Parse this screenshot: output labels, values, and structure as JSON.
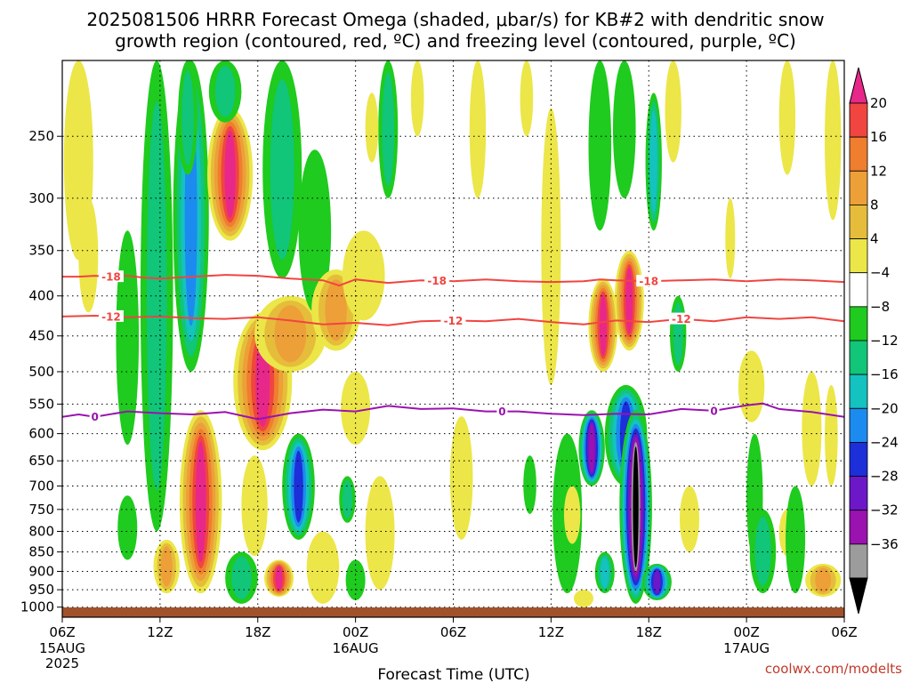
{
  "chart_data": {
    "type": "heatmap",
    "title_line1": "2025081506 HRRR Forecast Omega (shaded, μbar/s) for KB#2 with dendritic snow",
    "title_line2": "growth region (contoured, red, ºC) and freezing level (contoured, purple, ºC)",
    "xlabel": "Forecast Time (UTC)",
    "ylabel": "",
    "credit": "coolwx.com/modelts",
    "x_ticks": [
      {
        "h": 0,
        "label": "06Z",
        "sub1": "15AUG",
        "sub2": "2025"
      },
      {
        "h": 6,
        "label": "12Z",
        "sub1": "",
        "sub2": ""
      },
      {
        "h": 12,
        "label": "18Z",
        "sub1": "",
        "sub2": ""
      },
      {
        "h": 18,
        "label": "00Z",
        "sub1": "16AUG",
        "sub2": ""
      },
      {
        "h": 24,
        "label": "06Z",
        "sub1": "",
        "sub2": ""
      },
      {
        "h": 30,
        "label": "12Z",
        "sub1": "",
        "sub2": ""
      },
      {
        "h": 36,
        "label": "18Z",
        "sub1": "",
        "sub2": ""
      },
      {
        "h": 42,
        "label": "00Z",
        "sub1": "17AUG",
        "sub2": ""
      },
      {
        "h": 48,
        "label": "06Z",
        "sub1": "",
        "sub2": ""
      }
    ],
    "xlim": [
      0,
      48
    ],
    "y_ticks": [
      250,
      300,
      350,
      400,
      450,
      500,
      550,
      600,
      650,
      700,
      750,
      800,
      850,
      900,
      950,
      1000
    ],
    "ylim": [
      200,
      1030
    ],
    "y_scale": "log-pressure",
    "grid": "dotted",
    "colorbar": {
      "labels": [
        "20",
        "16",
        "12",
        "8",
        "4",
        "−4",
        "−8",
        "−12",
        "−16",
        "−20",
        "−24",
        "−28",
        "−32",
        "−36"
      ],
      "colors": [
        "#e8278a",
        "#f04540",
        "#ef7e2f",
        "#ed9f38",
        "#e5bd3a",
        "#ece648",
        "#ffffff",
        "#1ecb1e",
        "#11c579",
        "#14c2c0",
        "#1c8bf0",
        "#1c2fd8",
        "#6c17c8",
        "#9a12b0",
        "#9c9c9c",
        "#000000"
      ]
    },
    "contours": [
      {
        "name": "dgz-minus-18",
        "label": "-18",
        "color": "#f04540",
        "points": [
          [
            0,
            378
          ],
          [
            1,
            378
          ],
          [
            2,
            377
          ],
          [
            3,
            378
          ],
          [
            4,
            377
          ],
          [
            5,
            379
          ],
          [
            6,
            380
          ],
          [
            8,
            378
          ],
          [
            10,
            376
          ],
          [
            12,
            377
          ],
          [
            14,
            380
          ],
          [
            16,
            382
          ],
          [
            17,
            388
          ],
          [
            18,
            381
          ],
          [
            20,
            385
          ],
          [
            22,
            382
          ],
          [
            24,
            383
          ],
          [
            26,
            381
          ],
          [
            28,
            383
          ],
          [
            30,
            384
          ],
          [
            32,
            383
          ],
          [
            33,
            381
          ],
          [
            34,
            382
          ],
          [
            36,
            383
          ],
          [
            38,
            382
          ],
          [
            40,
            381
          ],
          [
            42,
            383
          ],
          [
            44,
            381
          ],
          [
            46,
            382
          ],
          [
            48,
            384
          ]
        ],
        "labels_at": [
          3,
          23,
          36
        ]
      },
      {
        "name": "dgz-minus-12",
        "label": "-12",
        "color": "#f04540",
        "points": [
          [
            0,
            425
          ],
          [
            2,
            424
          ],
          [
            4,
            426
          ],
          [
            6,
            425
          ],
          [
            8,
            427
          ],
          [
            10,
            428
          ],
          [
            12,
            426
          ],
          [
            14,
            430
          ],
          [
            16,
            435
          ],
          [
            18,
            433
          ],
          [
            20,
            436
          ],
          [
            22,
            431
          ],
          [
            24,
            430
          ],
          [
            26,
            431
          ],
          [
            28,
            428
          ],
          [
            30,
            432
          ],
          [
            32,
            435
          ],
          [
            34,
            430
          ],
          [
            36,
            432
          ],
          [
            38,
            428
          ],
          [
            40,
            431
          ],
          [
            42,
            426
          ],
          [
            44,
            428
          ],
          [
            46,
            426
          ],
          [
            48,
            431
          ]
        ],
        "labels_at": [
          3,
          24,
          38
        ]
      },
      {
        "name": "freezing-level",
        "label": "0",
        "color": "#9a12b0",
        "points": [
          [
            0,
            571
          ],
          [
            1,
            567
          ],
          [
            2,
            571
          ],
          [
            4,
            562
          ],
          [
            6,
            565
          ],
          [
            8,
            567
          ],
          [
            10,
            563
          ],
          [
            12,
            575
          ],
          [
            14,
            565
          ],
          [
            16,
            559
          ],
          [
            18,
            562
          ],
          [
            20,
            553
          ],
          [
            22,
            558
          ],
          [
            24,
            557
          ],
          [
            26,
            562
          ],
          [
            28,
            562
          ],
          [
            30,
            566
          ],
          [
            32,
            568
          ],
          [
            34,
            566
          ],
          [
            36,
            567
          ],
          [
            38,
            558
          ],
          [
            40,
            561
          ],
          [
            42,
            552
          ],
          [
            43,
            549
          ],
          [
            44,
            558
          ],
          [
            46,
            563
          ],
          [
            48,
            571
          ]
        ],
        "labels_at": [
          2,
          27,
          40
        ]
      }
    ],
    "shaded_blobs": [
      {
        "x": 1.0,
        "p": [
          200,
          360
        ],
        "w": 0.9,
        "peak": 5
      },
      {
        "x": 1.6,
        "p": [
          300,
          420
        ],
        "w": 0.6,
        "peak": 5
      },
      {
        "x": 4.0,
        "p": [
          330,
          620
        ],
        "w": 0.7,
        "peak": -6
      },
      {
        "x": 4.0,
        "p": [
          720,
          870
        ],
        "w": 0.6,
        "peak": -6
      },
      {
        "x": 5.8,
        "p": [
          200,
          800
        ],
        "w": 1.0,
        "peak": -10
      },
      {
        "x": 6.4,
        "p": [
          820,
          960
        ],
        "w": 0.8,
        "peak": 10
      },
      {
        "x": 7.9,
        "p": [
          200,
          500
        ],
        "w": 1.1,
        "peak": -16
      },
      {
        "x": 7.7,
        "p": [
          200,
          280
        ],
        "w": 0.6,
        "peak": -10
      },
      {
        "x": 8.5,
        "p": [
          560,
          960
        ],
        "w": 1.3,
        "peak": 24
      },
      {
        "x": 10.3,
        "p": [
          230,
          340
        ],
        "w": 1.4,
        "peak": 26
      },
      {
        "x": 10.0,
        "p": [
          200,
          240
        ],
        "w": 1.0,
        "peak": -10
      },
      {
        "x": 12.3,
        "p": [
          420,
          630
        ],
        "w": 1.8,
        "peak": 24
      },
      {
        "x": 11.8,
        "p": [
          640,
          860
        ],
        "w": 0.8,
        "peak": 6
      },
      {
        "x": 14.0,
        "p": [
          400,
          500
        ],
        "w": 2.2,
        "peak": 12
      },
      {
        "x": 14.5,
        "p": [
          600,
          820
        ],
        "w": 1.0,
        "peak": -22
      },
      {
        "x": 13.3,
        "p": [
          870,
          970
        ],
        "w": 0.9,
        "peak": 24
      },
      {
        "x": 11.0,
        "p": [
          850,
          990
        ],
        "w": 1.0,
        "peak": -8
      },
      {
        "x": 13.5,
        "p": [
          200,
          380
        ],
        "w": 1.2,
        "peak": -10
      },
      {
        "x": 15.5,
        "p": [
          260,
          420
        ],
        "w": 1.0,
        "peak": -6
      },
      {
        "x": 16.8,
        "p": [
          370,
          470
        ],
        "w": 1.5,
        "peak": 10
      },
      {
        "x": 18.5,
        "p": [
          330,
          430
        ],
        "w": 1.3,
        "peak": 6
      },
      {
        "x": 16.0,
        "p": [
          800,
          990
        ],
        "w": 1.0,
        "peak": 6
      },
      {
        "x": 18.0,
        "p": [
          500,
          620
        ],
        "w": 0.9,
        "peak": 6
      },
      {
        "x": 18.0,
        "p": [
          870,
          980
        ],
        "w": 0.6,
        "peak": -6
      },
      {
        "x": 17.5,
        "p": [
          680,
          780
        ],
        "w": 0.5,
        "peak": -10
      },
      {
        "x": 19.5,
        "p": [
          680,
          950
        ],
        "w": 0.9,
        "peak": 5
      },
      {
        "x": 20.0,
        "p": [
          200,
          300
        ],
        "w": 0.6,
        "peak": -10
      },
      {
        "x": 19.0,
        "p": [
          220,
          270
        ],
        "w": 0.4,
        "peak": 5
      },
      {
        "x": 21.8,
        "p": [
          200,
          250
        ],
        "w": 0.4,
        "peak": 5
      },
      {
        "x": 24.5,
        "p": [
          570,
          820
        ],
        "w": 0.7,
        "peak": 5
      },
      {
        "x": 25.5,
        "p": [
          200,
          300
        ],
        "w": 0.5,
        "peak": 5
      },
      {
        "x": 28.5,
        "p": [
          200,
          250
        ],
        "w": 0.4,
        "peak": 5
      },
      {
        "x": 28.7,
        "p": [
          640,
          760
        ],
        "w": 0.4,
        "peak": -6
      },
      {
        "x": 30.0,
        "p": [
          230,
          520
        ],
        "w": 0.6,
        "peak": 5
      },
      {
        "x": 31.0,
        "p": [
          600,
          960
        ],
        "w": 0.9,
        "peak": -6
      },
      {
        "x": 31.3,
        "p": [
          700,
          830
        ],
        "w": 0.5,
        "peak": 6
      },
      {
        "x": 32.0,
        "p": [
          950,
          1000
        ],
        "w": 0.6,
        "peak": 6
      },
      {
        "x": 32.5,
        "p": [
          560,
          700
        ],
        "w": 0.8,
        "peak": -28
      },
      {
        "x": 33.0,
        "p": [
          200,
          330
        ],
        "w": 0.7,
        "peak": -6
      },
      {
        "x": 33.2,
        "p": [
          380,
          500
        ],
        "w": 0.9,
        "peak": 24
      },
      {
        "x": 33.3,
        "p": [
          850,
          960
        ],
        "w": 0.6,
        "peak": -12
      },
      {
        "x": 34.5,
        "p": [
          200,
          300
        ],
        "w": 0.7,
        "peak": -6
      },
      {
        "x": 34.8,
        "p": [
          350,
          470
        ],
        "w": 0.9,
        "peak": 24
      },
      {
        "x": 34.6,
        "p": [
          520,
          700
        ],
        "w": 1.3,
        "peak": -20
      },
      {
        "x": 35.2,
        "p": [
          560,
          990
        ],
        "w": 1.0,
        "peak": -42
      },
      {
        "x": 36.5,
        "p": [
          880,
          980
        ],
        "w": 0.9,
        "peak": -26
      },
      {
        "x": 37.5,
        "p": [
          200,
          270
        ],
        "w": 0.5,
        "peak": 5
      },
      {
        "x": 36.3,
        "p": [
          220,
          330
        ],
        "w": 0.5,
        "peak": -12
      },
      {
        "x": 37.8,
        "p": [
          400,
          500
        ],
        "w": 0.5,
        "peak": -8
      },
      {
        "x": 38.5,
        "p": [
          700,
          850
        ],
        "w": 0.6,
        "peak": 5
      },
      {
        "x": 41.0,
        "p": [
          300,
          380
        ],
        "w": 0.3,
        "peak": 5
      },
      {
        "x": 42.3,
        "p": [
          470,
          580
        ],
        "w": 0.8,
        "peak": 5
      },
      {
        "x": 42.5,
        "p": [
          600,
          870
        ],
        "w": 0.5,
        "peak": -6
      },
      {
        "x": 43.0,
        "p": [
          750,
          960
        ],
        "w": 0.8,
        "peak": -8
      },
      {
        "x": 44.5,
        "p": [
          750,
          860
        ],
        "w": 0.5,
        "peak": 5
      },
      {
        "x": 45.0,
        "p": [
          700,
          960
        ],
        "w": 0.6,
        "peak": -6
      },
      {
        "x": 44.5,
        "p": [
          200,
          280
        ],
        "w": 0.5,
        "peak": 5
      },
      {
        "x": 46.7,
        "p": [
          880,
          970
        ],
        "w": 1.1,
        "peak": 10
      },
      {
        "x": 47.3,
        "p": [
          200,
          320
        ],
        "w": 0.5,
        "peak": 5
      },
      {
        "x": 47.2,
        "p": [
          520,
          700
        ],
        "w": 0.4,
        "peak": 5
      },
      {
        "x": 46.0,
        "p": [
          500,
          700
        ],
        "w": 0.6,
        "peak": 5
      }
    ],
    "ground_color": "#a0522d"
  }
}
